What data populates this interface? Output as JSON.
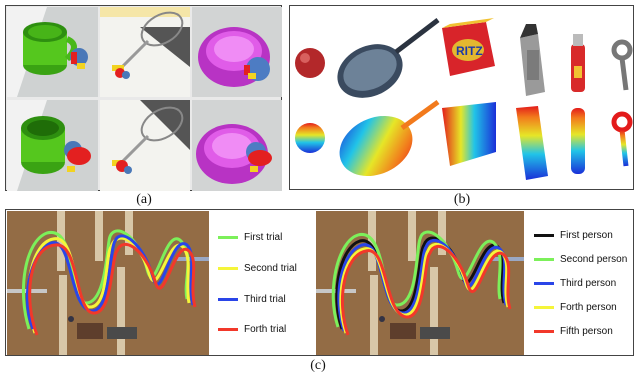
{
  "captions": {
    "a": "(a)",
    "b": "(b)",
    "c": "(c)"
  },
  "panel_a": {
    "cells": [
      {
        "object": "green-mug",
        "state": "pre-grasp"
      },
      {
        "object": "tennis-racket",
        "state": "pre-grasp"
      },
      {
        "object": "pink-bowl",
        "state": "pre-grasp"
      },
      {
        "object": "green-mug",
        "state": "grasp"
      },
      {
        "object": "tennis-racket",
        "state": "grasp"
      },
      {
        "object": "pink-bowl",
        "state": "grasp"
      }
    ]
  },
  "panel_b": {
    "objects": [
      "apple",
      "frying-pan",
      "ritz-cracker-box",
      "cheese-grater",
      "red-bottle",
      "bottle-opener"
    ],
    "box_text": "RITZ"
  },
  "legend_trials": [
    {
      "label": "First trial",
      "color": "#7cf05a"
    },
    {
      "label": "Second trial",
      "color": "#f5f53a"
    },
    {
      "label": "Third trial",
      "color": "#2a45e8"
    },
    {
      "label": "Forth trial",
      "color": "#f2382a"
    }
  ],
  "legend_persons": [
    {
      "label": "First person",
      "color": "#111111"
    },
    {
      "label": "Second person",
      "color": "#7cf05a"
    },
    {
      "label": "Third person",
      "color": "#2a45e8"
    },
    {
      "label": "Forth person",
      "color": "#f5f53a"
    },
    {
      "label": "Fifth person",
      "color": "#f2382a"
    }
  ]
}
